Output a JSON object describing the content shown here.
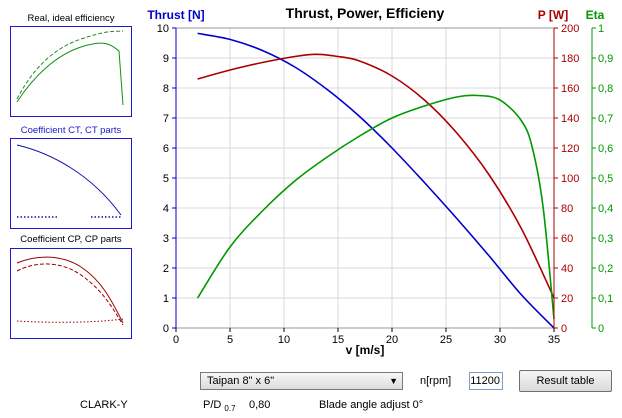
{
  "thumbnails": [
    {
      "title": "Real, ideal efficiency",
      "title_color": "#000000"
    },
    {
      "title": "Coefficient CT, CT parts",
      "title_color": "#1a1acc"
    },
    {
      "title": "Coefficient CP, CP parts",
      "title_color": "#000000"
    }
  ],
  "chart_data": {
    "type": "line",
    "title": "Thrust, Power, Efficieny",
    "xlabel": "v [m/s]",
    "xlim": [
      0,
      35
    ],
    "x_ticks": [
      "0",
      "5",
      "10",
      "15",
      "20",
      "25",
      "30",
      "35"
    ],
    "grid": true,
    "axes": {
      "thrust": {
        "label": "Thrust [N]",
        "color": "#0000cc",
        "ylim": [
          0,
          10
        ],
        "ticks": [
          "0",
          "1",
          "2",
          "3",
          "4",
          "5",
          "6",
          "7",
          "8",
          "9",
          "10"
        ]
      },
      "power": {
        "label": "P [W]",
        "color": "#aa0000",
        "ylim": [
          0,
          200
        ],
        "ticks": [
          "0",
          "20",
          "40",
          "60",
          "80",
          "100",
          "120",
          "140",
          "160",
          "180",
          "200"
        ]
      },
      "eta": {
        "label": "Eta",
        "color": "#009900",
        "ylim": [
          0,
          1
        ],
        "ticks": [
          "0",
          "0,1",
          "0,2",
          "0,3",
          "0,4",
          "0,5",
          "0,6",
          "0,7",
          "0,8",
          "0,9",
          "1"
        ]
      }
    },
    "series": [
      {
        "axis": "thrust",
        "color": "#0000cc",
        "x": [
          2,
          5,
          8,
          11,
          14,
          17,
          20,
          23,
          26,
          29,
          32,
          35
        ],
        "y": [
          9.82,
          9.62,
          9.25,
          8.7,
          7.95,
          7.05,
          6.0,
          4.85,
          3.65,
          2.4,
          1.1,
          0.0
        ]
      },
      {
        "axis": "power",
        "color": "#aa0000",
        "x": [
          2,
          5,
          8,
          11,
          13,
          15,
          17,
          20,
          23,
          26,
          29,
          32,
          35
        ],
        "y": [
          166,
          172,
          177,
          181,
          182.5,
          181,
          178,
          168,
          152,
          130,
          102,
          66,
          20
        ]
      },
      {
        "axis": "eta",
        "color": "#009900",
        "x": [
          2,
          5,
          8,
          11,
          14,
          17,
          20,
          23,
          26,
          28,
          30,
          32,
          33,
          34,
          35
        ],
        "y": [
          0.1,
          0.27,
          0.39,
          0.49,
          0.57,
          0.64,
          0.7,
          0.74,
          0.77,
          0.775,
          0.76,
          0.69,
          0.6,
          0.4,
          0.03
        ]
      }
    ]
  },
  "controls": {
    "propeller_select": "Taipan 8\" x 6\"",
    "rpm_label": "n[rpm]",
    "rpm_value": "11200",
    "result_button": "Result table"
  },
  "footer": {
    "airfoil": "CLARK-Y",
    "pd_label": "P/D",
    "pd_sub": "0.7",
    "pd_value": "0,80",
    "blade_angle": "Blade angle adjust 0°"
  }
}
